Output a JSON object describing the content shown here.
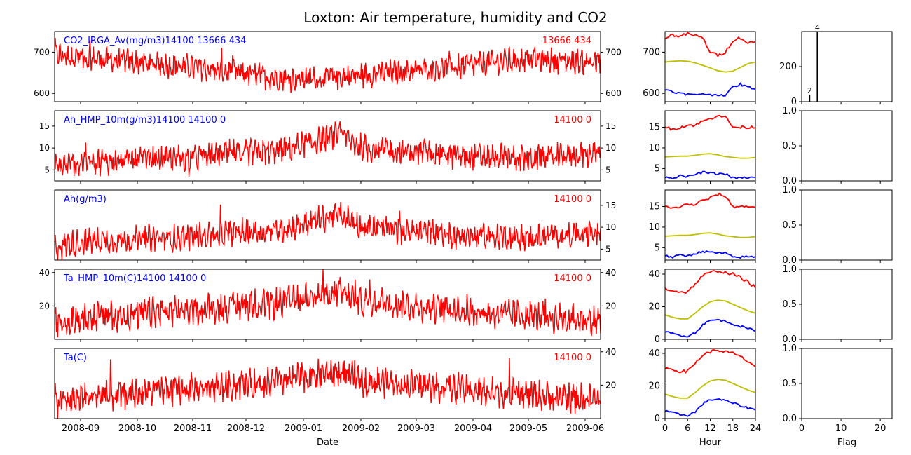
{
  "title": "Loxton: Air temperature, humidity and CO2",
  "chart_data": {
    "type": "line",
    "time_series_panels": [
      {
        "label": "CO2_IRGA_Av(mg/m3)14100 13666 434",
        "counts_label": "13666 434",
        "ylim": [
          580,
          750
        ],
        "left_ticks": [
          600,
          700
        ],
        "right_ticks": [
          600,
          700
        ],
        "mean_trend": [
          695,
          688,
          682,
          678,
          672,
          668,
          662,
          655,
          648,
          640,
          635,
          636,
          640,
          645,
          650,
          655,
          660,
          665,
          672,
          678,
          682,
          680,
          678,
          676
        ],
        "noise_amp": 30
      },
      {
        "label": "Ah_HMP_10m(g/m3)14100 14100 0",
        "counts_label": "14100 0",
        "ylim": [
          2.5,
          18.5
        ],
        "left_ticks": [
          5,
          10,
          15
        ],
        "right_ticks": [
          5,
          10,
          15
        ],
        "mean_trend": [
          5.5,
          6.5,
          7.0,
          7.0,
          7.5,
          7.5,
          8.0,
          8.5,
          9.0,
          9.0,
          10.0,
          11.5,
          13.0,
          10.0,
          9.5,
          9.0,
          9.0,
          8.0,
          8.0,
          8.0,
          7.5,
          8.0,
          8.5,
          8.5
        ],
        "noise_amp": 3.0
      },
      {
        "label": "Ah(g/m3)",
        "counts_label": "14100 0",
        "ylim": [
          2.5,
          18.5
        ],
        "left_ticks": [],
        "right_ticks": [
          5,
          10,
          15
        ],
        "mean_trend": [
          5.5,
          6.5,
          7.0,
          7.0,
          7.5,
          7.5,
          8.0,
          8.5,
          9.0,
          9.0,
          10.0,
          11.5,
          13.0,
          10.0,
          9.5,
          9.0,
          9.0,
          8.0,
          8.0,
          8.0,
          7.5,
          8.0,
          8.5,
          8.5
        ],
        "noise_amp": 3.0
      },
      {
        "label": "Ta_HMP_10m(C)14100 14100 0",
        "counts_label": "14100 0",
        "ylim": [
          0,
          42
        ],
        "left_ticks": [
          20,
          40
        ],
        "right_ticks": [
          20,
          40
        ],
        "mean_trend": [
          10,
          12,
          14,
          14,
          16,
          17,
          18,
          19,
          21,
          21,
          23,
          26,
          28,
          22,
          22,
          20,
          19,
          18,
          16,
          15,
          14,
          13,
          12,
          11
        ],
        "noise_amp": 9
      },
      {
        "label": "Ta(C)",
        "counts_label": "14100 0",
        "ylim": [
          0,
          42
        ],
        "left_ticks": [],
        "right_ticks": [
          20,
          40
        ],
        "mean_trend": [
          10,
          12,
          14,
          14,
          16,
          17,
          18,
          19,
          21,
          21,
          23,
          26,
          28,
          22,
          22,
          20,
          19,
          18,
          16,
          15,
          14,
          13,
          12,
          11
        ],
        "noise_amp": 9
      }
    ],
    "date_ticks": [
      "2008-09",
      "2008-10",
      "2008-11",
      "2008-12",
      "2009-01",
      "2009-02",
      "2009-03",
      "2009-04",
      "2009-05",
      "2009-06"
    ],
    "date_axis_label": "Date",
    "diurnal_panels": [
      {
        "ylim": [
          580,
          750
        ],
        "ticks": [
          600,
          700
        ],
        "hours": [
          0,
          2,
          4,
          6,
          8,
          10,
          12,
          14,
          16,
          18,
          20,
          22,
          24
        ],
        "max": [
          735,
          742,
          738,
          745,
          740,
          735,
          700,
          692,
          700,
          728,
          735,
          722,
          725
        ],
        "mean": [
          676,
          678,
          679,
          678,
          674,
          668,
          662,
          655,
          652,
          654,
          663,
          672,
          676
        ],
        "min": [
          610,
          605,
          600,
          598,
          596,
          600,
          596,
          597,
          596,
          615,
          622,
          615,
          612
        ]
      },
      {
        "ylim": [
          2,
          19
        ],
        "ticks": [
          5,
          10,
          15
        ],
        "hours": [
          0,
          2,
          4,
          6,
          8,
          10,
          12,
          14,
          16,
          18,
          20,
          22,
          24
        ],
        "max": [
          15,
          14.5,
          15,
          15.5,
          15.5,
          16.5,
          17,
          18,
          17.5,
          15,
          15,
          15,
          15
        ],
        "mean": [
          7.8,
          7.9,
          8.0,
          8.0,
          8.2,
          8.5,
          8.6,
          8.3,
          7.9,
          7.7,
          7.5,
          7.5,
          7.7
        ],
        "min": [
          3.0,
          2.7,
          3.2,
          3.0,
          3.6,
          4.1,
          3.9,
          3.7,
          3.7,
          2.7,
          2.7,
          2.8,
          2.8
        ]
      },
      {
        "ylim": [
          2,
          19
        ],
        "ticks": [
          5,
          10,
          15
        ],
        "hours": [
          0,
          2,
          4,
          6,
          8,
          10,
          12,
          14,
          16,
          18,
          20,
          22,
          24
        ],
        "max": [
          15,
          14.5,
          15,
          15.5,
          15.5,
          16.5,
          17,
          18,
          17.5,
          15,
          15,
          15,
          15
        ],
        "mean": [
          7.8,
          7.9,
          8.0,
          8.0,
          8.2,
          8.5,
          8.6,
          8.3,
          7.9,
          7.7,
          7.5,
          7.5,
          7.7
        ],
        "min": [
          3.0,
          2.7,
          3.2,
          3.0,
          3.6,
          4.1,
          3.9,
          3.7,
          3.7,
          2.7,
          2.7,
          2.8,
          2.8
        ]
      },
      {
        "ylim": [
          0,
          43
        ],
        "ticks": [
          0,
          20,
          40
        ],
        "hours": [
          0,
          2,
          4,
          6,
          8,
          10,
          12,
          14,
          16,
          18,
          20,
          22,
          24
        ],
        "max": [
          31,
          30,
          29,
          29,
          34,
          39,
          41,
          42,
          41,
          40,
          38,
          35,
          32
        ],
        "mean": [
          15,
          13.5,
          12.5,
          12.5,
          16,
          20,
          23,
          24,
          23.5,
          21.5,
          19.5,
          17.5,
          16
        ],
        "min": [
          4.5,
          3.5,
          2.5,
          2,
          4,
          9,
          11.5,
          12,
          11,
          9.5,
          8,
          6.5,
          5.5
        ]
      },
      {
        "ylim": [
          0,
          43
        ],
        "ticks": [
          0,
          20,
          40
        ],
        "hours": [
          0,
          2,
          4,
          6,
          8,
          10,
          12,
          14,
          16,
          18,
          20,
          22,
          24
        ],
        "max": [
          31,
          30,
          29,
          29,
          34,
          39,
          41,
          42,
          41,
          40,
          38,
          35,
          32
        ],
        "mean": [
          15,
          13.5,
          12.5,
          12.5,
          16,
          20,
          23,
          24,
          23.5,
          21.5,
          19.5,
          17.5,
          16
        ],
        "min": [
          4.5,
          3.5,
          2.5,
          2,
          4,
          9,
          11.5,
          12,
          11,
          9.5,
          8,
          6.5,
          5.5
        ]
      }
    ],
    "hour_ticks": [
      "0",
      "6",
      "12",
      "18",
      "24"
    ],
    "hour_axis_label": "Hour",
    "flag_panels": [
      {
        "ylim": [
          0,
          400
        ],
        "ticks": [
          "0",
          "200"
        ],
        "bars": [
          {
            "flag": 2,
            "count": 40,
            "label": "2"
          },
          {
            "flag": 4,
            "count": 400,
            "label": "4"
          }
        ]
      },
      {
        "ylim": [
          0,
          1
        ],
        "ticks": [
          "0.0",
          "0.5",
          "1.0"
        ],
        "bars": []
      },
      {
        "ylim": [
          0,
          1
        ],
        "ticks": [
          "0.0",
          "0.5",
          "1.0"
        ],
        "bars": []
      },
      {
        "ylim": [
          0,
          1
        ],
        "ticks": [
          "0.0",
          "0.5",
          "1.0"
        ],
        "bars": []
      },
      {
        "ylim": [
          0,
          1
        ],
        "ticks": [
          "0.0",
          "0.5",
          "1.0"
        ],
        "bars": []
      }
    ],
    "flag_ticks": [
      "0",
      "10",
      "20"
    ],
    "flag_axis_label": "Flag",
    "colors": {
      "series": "#ff0000",
      "label_blue": "#0000ff",
      "max": "#ff0000",
      "mean": "#bfbf00",
      "min": "#0000ff",
      "bar": "#000000"
    }
  }
}
